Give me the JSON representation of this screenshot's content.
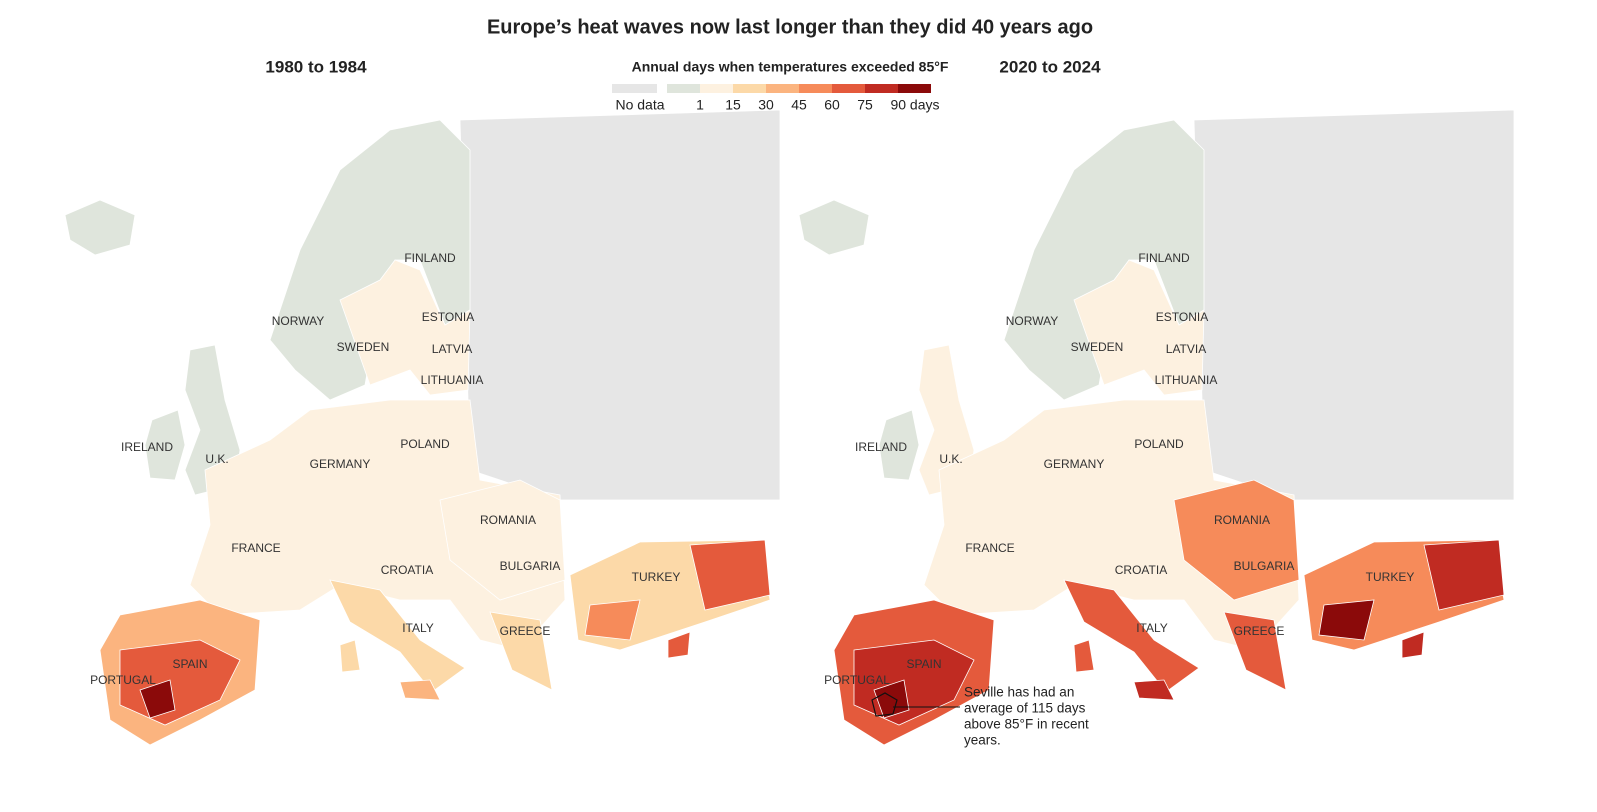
{
  "title": "Europe’s heat waves now last longer than they did 40 years ago",
  "legend": {
    "title": "Annual days when temperatures exceeded 85°F",
    "no_data": {
      "label": "No data",
      "color": "#e6e6e6"
    },
    "colors": [
      "#dfe5dc",
      "#fdf1e0",
      "#fcd9a8",
      "#fbb47f",
      "#f68b5a",
      "#e45a3c",
      "#c02b22",
      "#8b0a0a"
    ],
    "labels": [
      "1",
      "15",
      "30",
      "45",
      "60",
      "75",
      "90 days"
    ]
  },
  "panels": [
    {
      "title": "1980 to 1984",
      "countries": [
        "FINLAND",
        "NORWAY",
        "SWEDEN",
        "ESTONIA",
        "LATVIA",
        "LITHUANIA",
        "IRELAND",
        "U.K.",
        "POLAND",
        "GERMANY",
        "ROMANIA",
        "FRANCE",
        "CROATIA",
        "BULGARIA",
        "TURKEY",
        "ITALY",
        "GREECE",
        "SPAIN",
        "PORTUGAL"
      ]
    },
    {
      "title": "2020 to 2024",
      "countries": [
        "FINLAND",
        "NORWAY",
        "SWEDEN",
        "ESTONIA",
        "LATVIA",
        "LITHUANIA",
        "IRELAND",
        "U.K.",
        "POLAND",
        "GERMANY",
        "ROMANIA",
        "FRANCE",
        "CROATIA",
        "BULGARIA",
        "TURKEY",
        "ITALY",
        "GREECE",
        "SPAIN",
        "PORTUGAL"
      ]
    }
  ],
  "annotation": [
    "Seville has had an",
    "average of 115 days",
    "above 85°F in recent",
    "years."
  ]
}
